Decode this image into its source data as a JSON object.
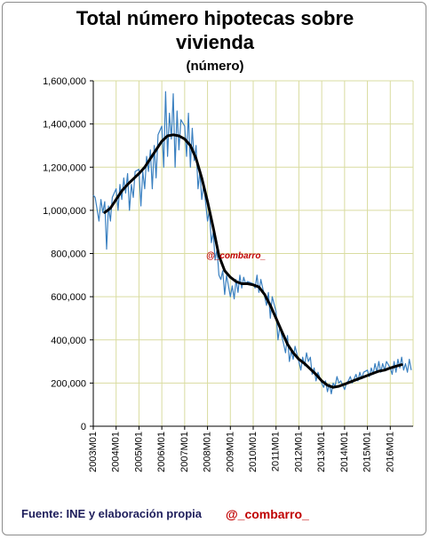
{
  "title_line1": "Total número hipotecas sobre",
  "title_line2": "vivienda",
  "subtitle": "(número)",
  "source": "Fuente: INE  y elaboración propia",
  "handle": "@_combarro_",
  "watermark": "@_combarro_",
  "colors": {
    "raw": "#3a80c0",
    "trend": "#000000",
    "grid": "#d9dca0",
    "source": "#1f1f5c",
    "handle": "#c00000"
  },
  "chart_data": {
    "type": "line",
    "title": "Total número hipotecas sobre vivienda",
    "subtitle": "(número)",
    "xlabel": "",
    "ylabel": "",
    "ylim": [
      0,
      1600000
    ],
    "xlim": [
      "2003-01",
      "2016-12"
    ],
    "y_ticks": [
      0,
      200000,
      400000,
      600000,
      800000,
      1000000,
      1200000,
      1400000,
      1600000
    ],
    "y_tick_labels": [
      "0",
      "200,000",
      "400,000",
      "600,000",
      "800,000",
      "1,000,000",
      "1,200,000",
      "1,400,000",
      "1,600,000"
    ],
    "x_tick_labels": [
      "2003M01",
      "2004M01",
      "2005M01",
      "2006M01",
      "2007M01",
      "2008M01",
      "2009M01",
      "2010M01",
      "2011M01",
      "2012M01",
      "2013M01",
      "2014M01",
      "2015M01",
      "2016M01"
    ],
    "grid": true,
    "legend": "none",
    "series": [
      {
        "values": [
          [
            "2003-01",
            1070000
          ],
          [
            "2003-02",
            1060000
          ],
          [
            "2003-04",
            950000
          ],
          [
            "2003-05",
            1050000
          ],
          [
            "2003-06",
            990000
          ],
          [
            "2003-07",
            1040000
          ],
          [
            "2003-08",
            820000
          ],
          [
            "2003-09",
            1020000
          ],
          [
            "2003-10",
            950000
          ],
          [
            "2003-11",
            1060000
          ],
          [
            "2004-01",
            1100000
          ],
          [
            "2004-02",
            1000000
          ],
          [
            "2004-03",
            1120000
          ],
          [
            "2004-04",
            1050000
          ],
          [
            "2004-05",
            1150000
          ],
          [
            "2004-06",
            1080000
          ],
          [
            "2004-07",
            1170000
          ],
          [
            "2004-08",
            1000000
          ],
          [
            "2004-09",
            1120000
          ],
          [
            "2004-10",
            1060000
          ],
          [
            "2004-11",
            1180000
          ],
          [
            "2005-01",
            1190000
          ],
          [
            "2005-02",
            1020000
          ],
          [
            "2005-03",
            1180000
          ],
          [
            "2005-04",
            1100000
          ],
          [
            "2005-05",
            1250000
          ],
          [
            "2005-06",
            1180000
          ],
          [
            "2005-07",
            1280000
          ],
          [
            "2005-08",
            1100000
          ],
          [
            "2005-09",
            1300000
          ],
          [
            "2005-10",
            1150000
          ],
          [
            "2005-11",
            1350000
          ],
          [
            "2006-01",
            1390000
          ],
          [
            "2006-02",
            1200000
          ],
          [
            "2006-03",
            1550000
          ],
          [
            "2006-04",
            1250000
          ],
          [
            "2006-05",
            1450000
          ],
          [
            "2006-06",
            1330000
          ],
          [
            "2006-07",
            1540000
          ],
          [
            "2006-08",
            1200000
          ],
          [
            "2006-09",
            1460000
          ],
          [
            "2006-10",
            1280000
          ],
          [
            "2006-11",
            1420000
          ],
          [
            "2007-01",
            1390000
          ],
          [
            "2007-02",
            1250000
          ],
          [
            "2007-03",
            1450000
          ],
          [
            "2007-04",
            1200000
          ],
          [
            "2007-05",
            1380000
          ],
          [
            "2007-06",
            1230000
          ],
          [
            "2007-07",
            1300000
          ],
          [
            "2007-08",
            1100000
          ],
          [
            "2007-09",
            1180000
          ],
          [
            "2007-10",
            1050000
          ],
          [
            "2007-11",
            1120000
          ],
          [
            "2008-01",
            950000
          ],
          [
            "2008-02",
            1000000
          ],
          [
            "2008-03",
            850000
          ],
          [
            "2008-04",
            900000
          ],
          [
            "2008-05",
            770000
          ],
          [
            "2008-06",
            820000
          ],
          [
            "2008-07",
            700000
          ],
          [
            "2008-08",
            680000
          ],
          [
            "2008-09",
            720000
          ],
          [
            "2008-10",
            610000
          ],
          [
            "2008-11",
            700000
          ],
          [
            "2009-01",
            600000
          ],
          [
            "2009-02",
            650000
          ],
          [
            "2009-03",
            590000
          ],
          [
            "2009-04",
            680000
          ],
          [
            "2009-05",
            620000
          ],
          [
            "2009-06",
            700000
          ],
          [
            "2009-07",
            640000
          ],
          [
            "2009-08",
            690000
          ],
          [
            "2009-09",
            660000
          ],
          [
            "2009-10",
            670000
          ],
          [
            "2010-01",
            660000
          ],
          [
            "2010-02",
            640000
          ],
          [
            "2010-03",
            700000
          ],
          [
            "2010-04",
            620000
          ],
          [
            "2010-05",
            680000
          ],
          [
            "2010-06",
            640000
          ],
          [
            "2010-07",
            600000
          ],
          [
            "2010-08",
            560000
          ],
          [
            "2010-09",
            620000
          ],
          [
            "2010-10",
            500000
          ],
          [
            "2010-11",
            600000
          ],
          [
            "2011-01",
            530000
          ],
          [
            "2011-02",
            400000
          ],
          [
            "2011-03",
            460000
          ],
          [
            "2011-04",
            420000
          ],
          [
            "2011-05",
            380000
          ],
          [
            "2011-06",
            340000
          ],
          [
            "2011-07",
            420000
          ],
          [
            "2011-08",
            300000
          ],
          [
            "2011-09",
            350000
          ],
          [
            "2011-10",
            310000
          ],
          [
            "2011-11",
            370000
          ],
          [
            "2012-01",
            300000
          ],
          [
            "2012-02",
            260000
          ],
          [
            "2012-03",
            320000
          ],
          [
            "2012-04",
            280000
          ],
          [
            "2012-05",
            340000
          ],
          [
            "2012-06",
            300000
          ],
          [
            "2012-07",
            320000
          ],
          [
            "2012-08",
            240000
          ],
          [
            "2012-09",
            270000
          ],
          [
            "2012-10",
            210000
          ],
          [
            "2012-11",
            250000
          ],
          [
            "2013-01",
            200000
          ],
          [
            "2013-02",
            180000
          ],
          [
            "2013-03",
            210000
          ],
          [
            "2013-04",
            160000
          ],
          [
            "2013-05",
            195000
          ],
          [
            "2013-06",
            150000
          ],
          [
            "2013-07",
            200000
          ],
          [
            "2013-08",
            185000
          ],
          [
            "2013-09",
            230000
          ],
          [
            "2013-10",
            200000
          ],
          [
            "2013-11",
            210000
          ],
          [
            "2014-01",
            170000
          ],
          [
            "2014-02",
            200000
          ],
          [
            "2014-03",
            210000
          ],
          [
            "2014-04",
            230000
          ],
          [
            "2014-05",
            200000
          ],
          [
            "2014-06",
            220000
          ],
          [
            "2014-07",
            240000
          ],
          [
            "2014-08",
            210000
          ],
          [
            "2014-09",
            250000
          ],
          [
            "2014-10",
            220000
          ],
          [
            "2014-11",
            250000
          ],
          [
            "2015-01",
            260000
          ],
          [
            "2015-02",
            230000
          ],
          [
            "2015-03",
            270000
          ],
          [
            "2015-04",
            240000
          ],
          [
            "2015-05",
            290000
          ],
          [
            "2015-06",
            250000
          ],
          [
            "2015-07",
            300000
          ],
          [
            "2015-08",
            250000
          ],
          [
            "2015-09",
            290000
          ],
          [
            "2015-10",
            260000
          ],
          [
            "2015-11",
            300000
          ],
          [
            "2016-01",
            270000
          ],
          [
            "2016-02",
            240000
          ],
          [
            "2016-03",
            300000
          ],
          [
            "2016-04",
            250000
          ],
          [
            "2016-05",
            310000
          ],
          [
            "2016-06",
            270000
          ],
          [
            "2016-07",
            320000
          ],
          [
            "2016-08",
            260000
          ],
          [
            "2016-09",
            290000
          ],
          [
            "2016-10",
            250000
          ],
          [
            "2016-11",
            310000
          ],
          [
            "2016-12",
            260000
          ]
        ]
      },
      {
        "values": [
          [
            "2003-07",
            990000
          ],
          [
            "2003-10",
            1010000
          ],
          [
            "2004-01",
            1050000
          ],
          [
            "2004-04",
            1090000
          ],
          [
            "2004-07",
            1120000
          ],
          [
            "2004-10",
            1145000
          ],
          [
            "2005-01",
            1170000
          ],
          [
            "2005-04",
            1200000
          ],
          [
            "2005-07",
            1240000
          ],
          [
            "2005-10",
            1280000
          ],
          [
            "2006-01",
            1320000
          ],
          [
            "2006-04",
            1345000
          ],
          [
            "2006-07",
            1350000
          ],
          [
            "2006-10",
            1345000
          ],
          [
            "2007-01",
            1330000
          ],
          [
            "2007-04",
            1300000
          ],
          [
            "2007-07",
            1240000
          ],
          [
            "2007-10",
            1150000
          ],
          [
            "2008-01",
            1040000
          ],
          [
            "2008-04",
            920000
          ],
          [
            "2008-07",
            790000
          ],
          [
            "2008-10",
            720000
          ],
          [
            "2009-01",
            690000
          ],
          [
            "2009-04",
            670000
          ],
          [
            "2009-07",
            660000
          ],
          [
            "2009-10",
            660000
          ],
          [
            "2010-01",
            655000
          ],
          [
            "2010-04",
            645000
          ],
          [
            "2010-07",
            610000
          ],
          [
            "2010-10",
            560000
          ],
          [
            "2011-01",
            500000
          ],
          [
            "2011-04",
            440000
          ],
          [
            "2011-07",
            380000
          ],
          [
            "2011-10",
            340000
          ],
          [
            "2012-01",
            310000
          ],
          [
            "2012-04",
            290000
          ],
          [
            "2012-07",
            265000
          ],
          [
            "2012-10",
            240000
          ],
          [
            "2013-01",
            210000
          ],
          [
            "2013-04",
            190000
          ],
          [
            "2013-07",
            180000
          ],
          [
            "2013-10",
            185000
          ],
          [
            "2014-01",
            195000
          ],
          [
            "2014-04",
            205000
          ],
          [
            "2014-07",
            215000
          ],
          [
            "2014-10",
            225000
          ],
          [
            "2015-01",
            235000
          ],
          [
            "2015-04",
            245000
          ],
          [
            "2015-07",
            255000
          ],
          [
            "2015-10",
            260000
          ],
          [
            "2016-01",
            270000
          ],
          [
            "2016-04",
            278000
          ],
          [
            "2016-07",
            285000
          ]
        ]
      }
    ]
  }
}
